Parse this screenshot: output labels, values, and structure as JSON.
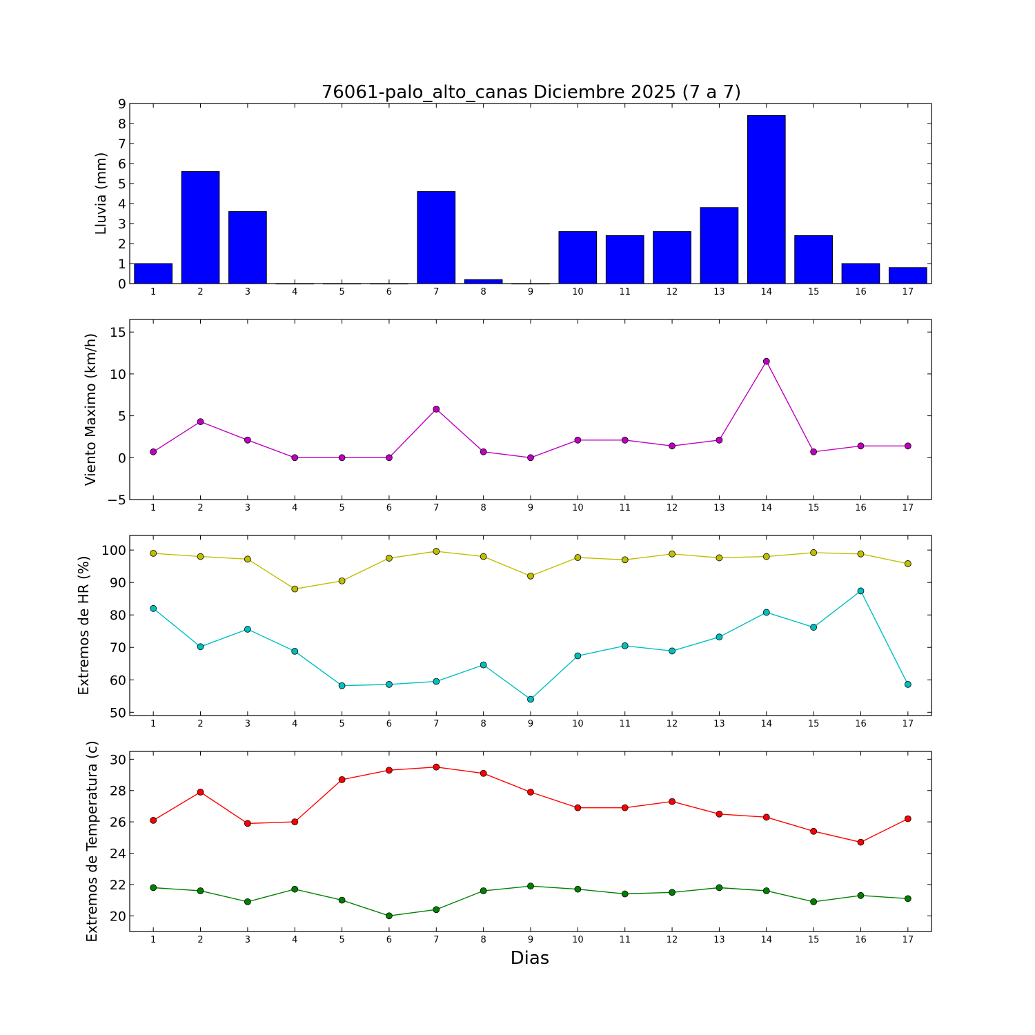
{
  "title": "76061-palo_alto_canas Diciembre 2025  (7 a 7)",
  "xlabel": "Dias",
  "chart_data": [
    {
      "type": "bar",
      "ylabel": "Lluvia (mm)",
      "ylim": [
        0,
        9
      ],
      "yticks": [
        "0",
        "1",
        "2",
        "3",
        "4",
        "5",
        "6",
        "7",
        "8",
        "9"
      ],
      "x": [
        1,
        2,
        3,
        4,
        5,
        6,
        7,
        8,
        9,
        10,
        11,
        12,
        13,
        14,
        15,
        16,
        17
      ],
      "series": [
        {
          "values": [
            1.0,
            5.6,
            3.6,
            0,
            0,
            0,
            4.6,
            0.2,
            0,
            2.6,
            2.4,
            2.6,
            3.8,
            8.4,
            2.4,
            1.0,
            0.8
          ],
          "color": "#0000ff"
        }
      ]
    },
    {
      "type": "line",
      "ylabel": "Viento Maximo (km/h)",
      "ylim": [
        -5,
        16.5
      ],
      "yticks": [
        "−5",
        "0",
        "5",
        "10",
        "15"
      ],
      "x": [
        1,
        2,
        3,
        4,
        5,
        6,
        7,
        8,
        9,
        10,
        11,
        12,
        13,
        14,
        15,
        16,
        17
      ],
      "series": [
        {
          "values": [
            0.7,
            4.3,
            2.1,
            0,
            0,
            0,
            5.8,
            0.7,
            0,
            2.1,
            2.1,
            1.4,
            2.1,
            11.5,
            0.7,
            1.4,
            1.4
          ],
          "color": "#bf00bf"
        }
      ]
    },
    {
      "type": "line",
      "ylabel": "Extremos de HR (%)",
      "ylim": [
        49,
        104.5
      ],
      "yticks": [
        "50",
        "60",
        "70",
        "80",
        "90",
        "100"
      ],
      "x": [
        1,
        2,
        3,
        4,
        5,
        6,
        7,
        8,
        9,
        10,
        11,
        12,
        13,
        14,
        15,
        16,
        17
      ],
      "series": [
        {
          "values": [
            99,
            98,
            97.2,
            88,
            90.5,
            97.5,
            99.6,
            98,
            92,
            97.7,
            97,
            98.8,
            97.6,
            98,
            99.2,
            98.8,
            95.8
          ],
          "color": "#bfbf00"
        },
        {
          "values": [
            82,
            70.2,
            75.6,
            68.8,
            58.2,
            58.6,
            59.5,
            64.6,
            54,
            67.4,
            70.5,
            68.9,
            73.2,
            80.8,
            76.2,
            87.4,
            58.6
          ],
          "color": "#00bfbf"
        }
      ]
    },
    {
      "type": "line",
      "ylabel": "Extremos de Temperatura (c)",
      "ylim": [
        19,
        30.5
      ],
      "yticks": [
        "20",
        "22",
        "24",
        "26",
        "28",
        "30"
      ],
      "x": [
        1,
        2,
        3,
        4,
        5,
        6,
        7,
        8,
        9,
        10,
        11,
        12,
        13,
        14,
        15,
        16,
        17
      ],
      "series": [
        {
          "values": [
            26.1,
            27.9,
            25.9,
            26.0,
            28.7,
            29.3,
            29.5,
            29.1,
            27.9,
            26.9,
            26.9,
            27.3,
            26.5,
            26.3,
            25.4,
            24.7,
            26.2
          ],
          "color": "#ff0000"
        },
        {
          "values": [
            21.8,
            21.6,
            20.9,
            21.7,
            21.0,
            20.0,
            20.4,
            21.6,
            21.9,
            21.7,
            21.4,
            21.5,
            21.8,
            21.6,
            20.9,
            21.3,
            21.1
          ],
          "color": "#008000"
        }
      ]
    }
  ]
}
